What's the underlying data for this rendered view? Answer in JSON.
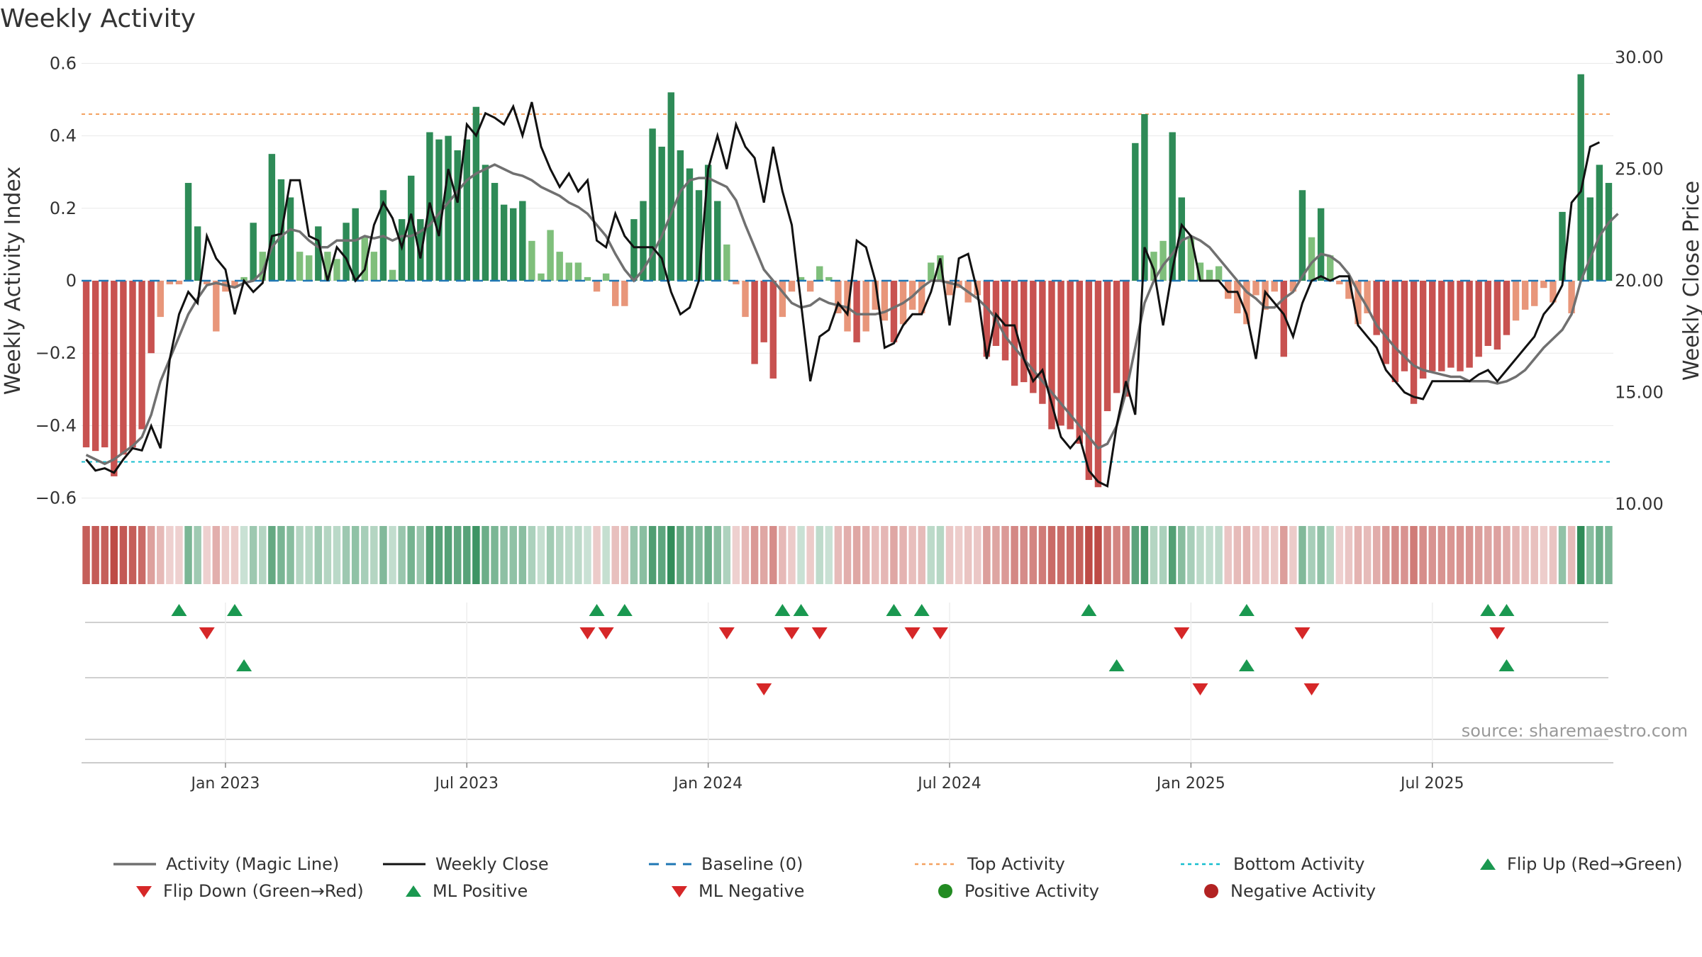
{
  "chart_data": {
    "type": "bar",
    "title": "Weekly Activity",
    "ylabel": "Weekly Activity Index",
    "ylabel_right": "Weekly Close Price",
    "ylim": [
      -0.6,
      0.6
    ],
    "ylim_right": [
      10,
      30
    ],
    "yticks": [
      "0.6",
      "0.4",
      "0.2",
      "0",
      "−0.2",
      "−0.4",
      "−0.6"
    ],
    "yticks_right": [
      "30.00",
      "25.00",
      "20.00",
      "15.00",
      "10.00"
    ],
    "xticks": [
      {
        "label": "Jan 2023",
        "week": 15
      },
      {
        "label": "Jul 2023",
        "week": 41
      },
      {
        "label": "Jan 2024",
        "week": 67
      },
      {
        "label": "Jul 2024",
        "week": 93
      },
      {
        "label": "Jan 2025",
        "week": 119
      },
      {
        "label": "Jul 2025",
        "week": 145
      }
    ],
    "top_activity": 0.46,
    "bottom_activity": -0.5,
    "activity": [
      -0.46,
      -0.47,
      -0.46,
      -0.54,
      -0.48,
      -0.46,
      -0.41,
      -0.2,
      -0.1,
      -0.01,
      -0.01,
      0.27,
      0.15,
      -0.01,
      -0.14,
      -0.03,
      -0.02,
      0.01,
      0.16,
      0.08,
      0.35,
      0.28,
      0.23,
      0.08,
      0.07,
      0.15,
      0.08,
      0.06,
      0.16,
      0.2,
      0.12,
      0.08,
      0.25,
      0.03,
      0.17,
      0.29,
      0.17,
      0.41,
      0.39,
      0.4,
      0.36,
      0.39,
      0.48,
      0.32,
      0.27,
      0.21,
      0.2,
      0.22,
      0.11,
      0.02,
      0.14,
      0.08,
      0.05,
      0.05,
      0.01,
      -0.03,
      0.02,
      -0.07,
      -0.07,
      0.17,
      0.22,
      0.42,
      0.37,
      0.52,
      0.36,
      0.31,
      0.25,
      0.32,
      0.22,
      0.1,
      -0.01,
      -0.1,
      -0.23,
      -0.17,
      -0.27,
      -0.1,
      -0.03,
      0.01,
      -0.03,
      0.04,
      0.01,
      -0.09,
      -0.14,
      -0.17,
      -0.14,
      -0.08,
      -0.11,
      -0.17,
      -0.12,
      -0.08,
      -0.09,
      0.05,
      0.07,
      -0.04,
      -0.02,
      -0.06,
      -0.04,
      -0.21,
      -0.18,
      -0.22,
      -0.29,
      -0.28,
      -0.31,
      -0.34,
      -0.41,
      -0.4,
      -0.41,
      -0.45,
      -0.55,
      -0.57,
      -0.36,
      -0.31,
      -0.32,
      0.38,
      0.46,
      0.08,
      0.11,
      0.41,
      0.23,
      0.12,
      0.05,
      0.03,
      0.04,
      -0.05,
      -0.09,
      -0.12,
      -0.04,
      -0.08,
      -0.03,
      -0.21,
      -0.03,
      0.25,
      0.12,
      0.2,
      0.07,
      -0.01,
      -0.05,
      -0.12,
      -0.09,
      -0.15,
      -0.23,
      -0.28,
      -0.25,
      -0.34,
      -0.27,
      -0.25,
      -0.25,
      -0.24,
      -0.25,
      -0.24,
      -0.21,
      -0.18,
      -0.19,
      -0.15,
      -0.11,
      -0.08,
      -0.07,
      -0.02,
      -0.06,
      0.19,
      -0.09,
      0.57,
      0.23,
      0.32,
      0.27
    ],
    "weekly_close": [
      12.0,
      11.5,
      11.6,
      11.4,
      12.0,
      12.5,
      12.4,
      13.5,
      12.5,
      16.5,
      18.5,
      19.5,
      19.0,
      22.0,
      21.0,
      20.5,
      18.5,
      20.0,
      19.5,
      19.9,
      22.0,
      22.1,
      24.5,
      24.5,
      22.0,
      21.8,
      20.0,
      21.5,
      21.0,
      20.0,
      20.5,
      22.5,
      23.5,
      22.8,
      21.5,
      23.0,
      21.0,
      23.5,
      22.0,
      25.0,
      23.5,
      27.0,
      26.5,
      27.5,
      27.3,
      27.0,
      27.8,
      26.5,
      28.0,
      26.0,
      25.0,
      24.2,
      24.8,
      24.0,
      24.5,
      21.8,
      21.5,
      23.0,
      22.0,
      21.5,
      21.5,
      21.5,
      21.0,
      19.5,
      18.5,
      18.8,
      20.0,
      25.0,
      26.5,
      25.0,
      27.0,
      26.0,
      25.5,
      23.5,
      26.0,
      24.0,
      22.5,
      19.0,
      15.5,
      17.5,
      17.8,
      19.0,
      18.5,
      21.8,
      21.5,
      20.0,
      17.0,
      17.2,
      18.0,
      18.5,
      18.5,
      19.5,
      21.0,
      18.0,
      21.0,
      21.2,
      19.5,
      16.5,
      18.5,
      18.0,
      18.0,
      16.5,
      15.5,
      16.0,
      14.5,
      13.0,
      12.5,
      13.0,
      11.5,
      11.0,
      10.8,
      13.5,
      15.5,
      14.0,
      21.5,
      20.5,
      18.0,
      20.5,
      22.5,
      22.0,
      20.0,
      20.0,
      20.0,
      19.5,
      19.5,
      18.5,
      16.5,
      19.5,
      19.0,
      18.5,
      17.5,
      19.0,
      20.0,
      20.2,
      20.0,
      20.2,
      20.2,
      18.0,
      17.5,
      17.0,
      16.0,
      15.5,
      15.0,
      14.8,
      14.7,
      15.5,
      15.5,
      15.5,
      15.5,
      15.5,
      15.8,
      16.0,
      15.5,
      16.0,
      16.5,
      17.0,
      17.5,
      18.5,
      19.0,
      19.8,
      23.5,
      24.0,
      26.0,
      26.2
    ],
    "magic_line": [
      12.2,
      12.0,
      11.8,
      12.0,
      12.3,
      12.6,
      13.0,
      14.0,
      15.5,
      16.5,
      17.5,
      18.5,
      19.2,
      19.8,
      19.9,
      19.8,
      19.7,
      19.9,
      20.0,
      20.4,
      21.5,
      22.0,
      22.3,
      22.2,
      21.8,
      21.5,
      21.5,
      21.8,
      21.8,
      21.8,
      22.0,
      21.9,
      22.0,
      21.8,
      22.0,
      22.0,
      22.2,
      22.5,
      23.0,
      23.5,
      24.0,
      24.5,
      24.8,
      25.0,
      25.2,
      25.0,
      24.8,
      24.7,
      24.5,
      24.2,
      24.0,
      23.8,
      23.5,
      23.3,
      23.0,
      22.5,
      22.0,
      21.2,
      20.5,
      20.0,
      20.5,
      21.2,
      22.0,
      23.0,
      24.0,
      24.5,
      24.6,
      24.6,
      24.4,
      24.2,
      23.6,
      22.5,
      21.5,
      20.5,
      20.0,
      19.5,
      19.0,
      18.8,
      18.9,
      19.2,
      19.0,
      18.9,
      18.8,
      18.5,
      18.5,
      18.5,
      18.6,
      18.8,
      19.0,
      19.3,
      19.7,
      20.0,
      20.0,
      19.9,
      19.8,
      19.5,
      19.2,
      18.8,
      18.3,
      17.5,
      17.0,
      16.5,
      16.0,
      15.5,
      15.0,
      14.5,
      14.0,
      13.5,
      13.0,
      12.5,
      12.7,
      13.5,
      15.0,
      17.0,
      19.0,
      20.0,
      20.7,
      21.2,
      21.8,
      22.0,
      21.8,
      21.5,
      21.0,
      20.5,
      20.0,
      19.5,
      19.2,
      18.8,
      18.8,
      19.2,
      19.5,
      20.2,
      20.8,
      21.2,
      21.1,
      20.8,
      20.3,
      19.5,
      18.8,
      18.0,
      17.5,
      17.0,
      16.6,
      16.2,
      16.0,
      15.9,
      15.8,
      15.7,
      15.7,
      15.5,
      15.5,
      15.5,
      15.4,
      15.5,
      15.7,
      16.0,
      16.5,
      17.0,
      17.4,
      17.8,
      18.5,
      20.0,
      21.0,
      22.0,
      22.6,
      23.0
    ]
  },
  "legend": [
    {
      "label": "Activity (Magic Line)",
      "kind": "line-gray"
    },
    {
      "label": "Weekly Close",
      "kind": "line-black"
    },
    {
      "label": "Baseline (0)",
      "kind": "line-dashed-blue"
    },
    {
      "label": "Top Activity",
      "kind": "line-dotted-orange"
    },
    {
      "label": "Bottom Activity",
      "kind": "line-dotted-cyan"
    },
    {
      "label": "Flip Up (Red→Green)",
      "kind": "triangle-up-green"
    },
    {
      "label": "Flip Down (Green→Red)",
      "kind": "triangle-down-red"
    },
    {
      "label": "ML Positive",
      "kind": "triangle-up-green"
    },
    {
      "label": "ML Negative",
      "kind": "triangle-down-red"
    },
    {
      "label": "Positive Activity",
      "kind": "dot-green"
    },
    {
      "label": "Negative Activity",
      "kind": "dot-red"
    }
  ],
  "flip_up_weeks": [
    10,
    16,
    55,
    58,
    75,
    77,
    87,
    90,
    108,
    125,
    151,
    153
  ],
  "flip_down_weeks": [
    13,
    54,
    56,
    69,
    76,
    79,
    89,
    92,
    118,
    131,
    152
  ],
  "ml_positive_weeks": [
    17,
    111,
    125,
    153
  ],
  "ml_negative_weeks": [
    73,
    120,
    132
  ],
  "source": "source: sharemaestro.com",
  "colors": {
    "strong_green": "#2e8b57",
    "light_green": "#7fbf7b",
    "strong_red": "#c85250",
    "light_red": "#e8967a",
    "magic_line": "#707070",
    "close_line": "#111111",
    "baseline": "#1f77b4",
    "top_line": "#f4a261",
    "bottom_line": "#17becf",
    "marker_green": "#1a9850",
    "marker_red": "#d62728"
  }
}
